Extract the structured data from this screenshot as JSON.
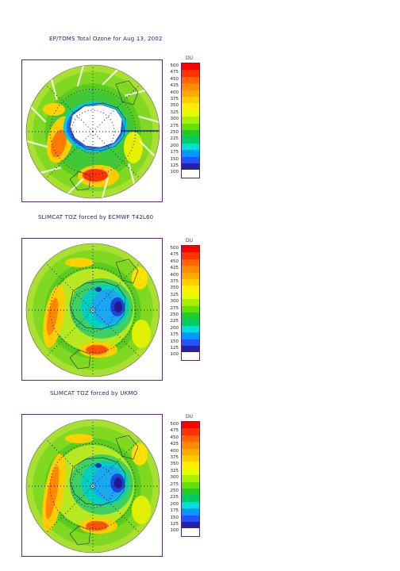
{
  "panels": [
    {
      "title": "EP/TOMS Total Ozone for Aug 13, 2002",
      "kind": "toms"
    },
    {
      "title": "SLIMCAT TOZ forced by ECMWF T42L60",
      "kind": "ecmwf"
    },
    {
      "title": "SLIMCAT TOZ forced by UKMO",
      "kind": "ukmo"
    }
  ],
  "colorbar": {
    "unit": "DU",
    "levels": [
      "500",
      "475",
      "450",
      "425",
      "400",
      "375",
      "350",
      "325",
      "300",
      "275",
      "250",
      "225",
      "200",
      "175",
      "150",
      "125",
      "100"
    ],
    "colors": [
      "#ff0000",
      "#ff3300",
      "#ff6600",
      "#ff8c00",
      "#ffaa00",
      "#ffcc00",
      "#ffee00",
      "#ddff00",
      "#a8f000",
      "#66e000",
      "#22cc22",
      "#00cc66",
      "#00dddd",
      "#0099ff",
      "#2255ff",
      "#2222aa",
      "#442266"
    ]
  },
  "chart_data": {
    "type": "heatmap",
    "projection": "south polar stereographic",
    "colorbar_unit": "DU",
    "colorbar_range": [
      100,
      500
    ],
    "colorbar_step": 25,
    "maps": [
      {
        "title": "EP/TOMS Total Ozone for Aug 13, 2002",
        "polar_night_no_data": true
      },
      {
        "title": "SLIMCAT TOZ forced by ECMWF T42L60"
      },
      {
        "title": "SLIMCAT TOZ forced by UKMO"
      }
    ]
  }
}
